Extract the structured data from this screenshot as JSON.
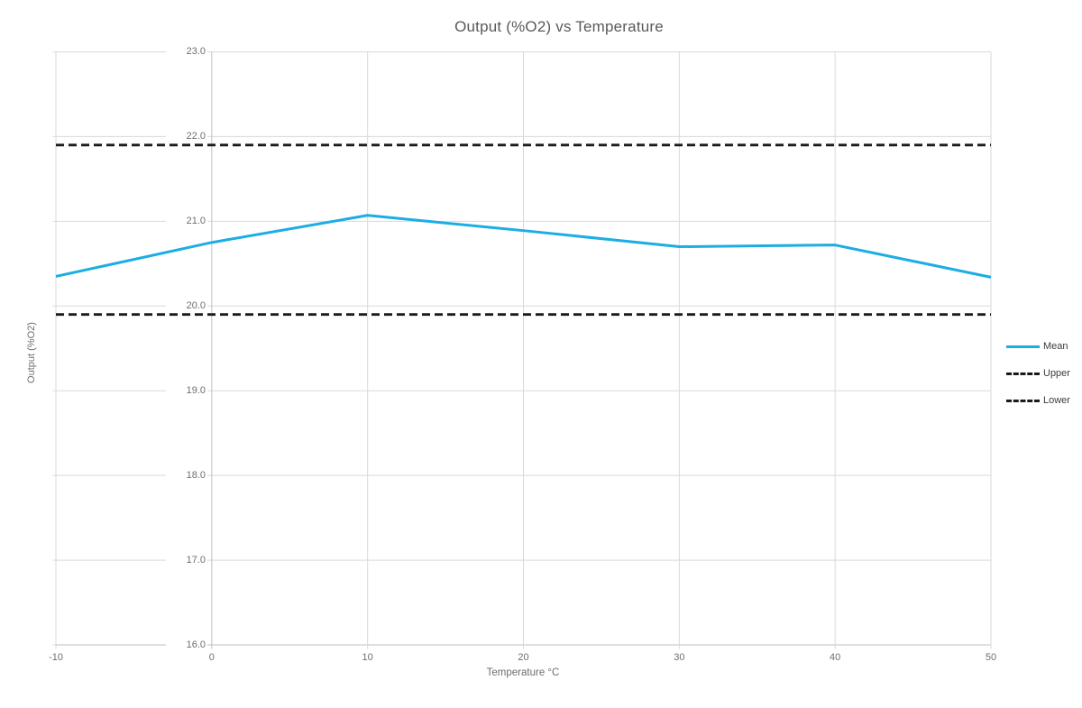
{
  "title": "Output (%O2) vs Temperature",
  "colors": {
    "background": "#FFFFFF",
    "mean_line": "#1CADE4",
    "limit_line": "#1A1A1A",
    "gridline": "#D9D9D9",
    "axis_line": "#BFBFBF",
    "title_text": "#595959",
    "tick_text": "#6E6E6E",
    "legend_text": "#3B3B3B"
  },
  "chart_data": {
    "type": "line",
    "title": "Output (%O2) vs Temperature",
    "xlabel": "Temperature °C",
    "ylabel": "Output (%O2)",
    "x": [
      -10,
      0,
      10,
      20,
      30,
      40,
      50
    ],
    "series": [
      {
        "name": "Mean",
        "style": "solid",
        "color": "#1CADE4",
        "values": [
          20.35,
          20.75,
          21.07,
          20.89,
          20.7,
          20.72,
          20.34
        ]
      },
      {
        "name": "Upper",
        "style": "dashed",
        "color": "#1A1A1A",
        "values": [
          21.9,
          21.9,
          21.9,
          21.9,
          21.9,
          21.9,
          21.9
        ]
      },
      {
        "name": "Lower",
        "style": "dashed",
        "color": "#1A1A1A",
        "values": [
          19.9,
          19.9,
          19.9,
          19.9,
          19.9,
          19.9,
          19.9
        ]
      }
    ],
    "xlim": [
      -10,
      50
    ],
    "ylim": [
      16.0,
      23.0
    ],
    "x_ticks": [
      "-10",
      "0",
      "10",
      "20",
      "30",
      "40",
      "50"
    ],
    "y_ticks": [
      "23.0",
      "22.0",
      "21.0",
      "20.0",
      "19.0",
      "18.0",
      "17.0",
      "16.0"
    ],
    "grid": true,
    "legend_position": "right",
    "legend": [
      "Mean",
      "Upper",
      "Lower"
    ]
  }
}
